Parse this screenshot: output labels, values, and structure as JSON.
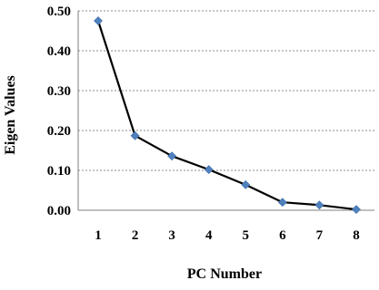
{
  "chart_data": {
    "type": "line",
    "title": "",
    "xlabel": "PC Number",
    "ylabel": "Eigen Values",
    "categories": [
      "1",
      "2",
      "3",
      "4",
      "5",
      "6",
      "7",
      "8"
    ],
    "x": [
      1,
      2,
      3,
      4,
      5,
      6,
      7,
      8
    ],
    "series": [
      {
        "values": [
          0.475,
          0.187,
          0.136,
          0.102,
          0.064,
          0.02,
          0.013,
          0.002
        ],
        "line_color": "#000000",
        "marker_color": "#4F81BD",
        "marker": "diamond"
      }
    ],
    "ylim": [
      0,
      0.5
    ],
    "yticks": [
      "0.00",
      "0.10",
      "0.20",
      "0.30",
      "0.40",
      "0.50"
    ],
    "ytick_values": [
      0,
      0.1,
      0.2,
      0.3,
      0.4,
      0.5
    ],
    "grid": "horizontal dashed",
    "legend": "none"
  }
}
